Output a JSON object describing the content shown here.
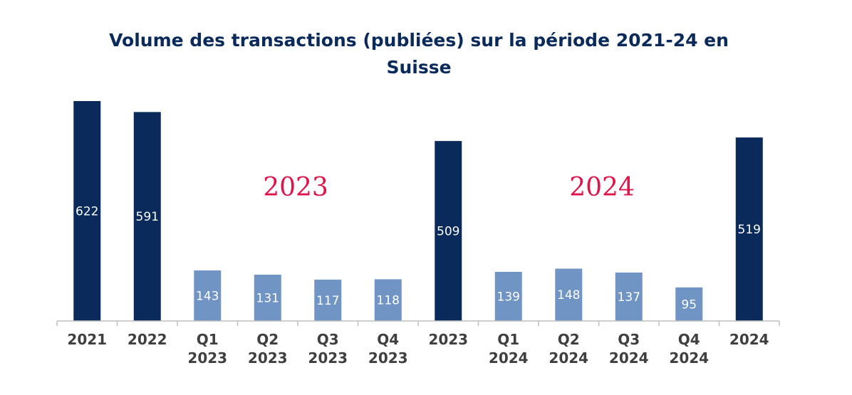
{
  "chart_data": {
    "type": "bar",
    "title": "Volume des transactions (publiées) sur la période 2021-24 en Suisse",
    "xlabel": "",
    "ylabel": "",
    "categories": [
      [
        "2021"
      ],
      [
        "2022"
      ],
      [
        "Q1",
        "2023"
      ],
      [
        "Q2",
        "2023"
      ],
      [
        "Q3",
        "2023"
      ],
      [
        "Q4",
        "2023"
      ],
      [
        "2023"
      ],
      [
        "Q1",
        "2024"
      ],
      [
        "Q2",
        "2024"
      ],
      [
        "Q3",
        "2024"
      ],
      [
        "Q4",
        "2024"
      ],
      [
        "2024"
      ]
    ],
    "values": [
      622,
      591,
      143,
      131,
      117,
      118,
      509,
      139,
      148,
      137,
      95,
      519
    ],
    "bar_kind": [
      "annual",
      "annual",
      "quarterly",
      "quarterly",
      "quarterly",
      "quarterly",
      "annual",
      "quarterly",
      "quarterly",
      "quarterly",
      "quarterly",
      "annual"
    ],
    "colors": {
      "annual": "#0a2a5c",
      "quarterly": "#7094c3",
      "annotation": "#e0134a",
      "axis": "#bfbfbf"
    },
    "annotations": [
      "2023",
      "2024"
    ],
    "grid": false,
    "legend": "none"
  }
}
